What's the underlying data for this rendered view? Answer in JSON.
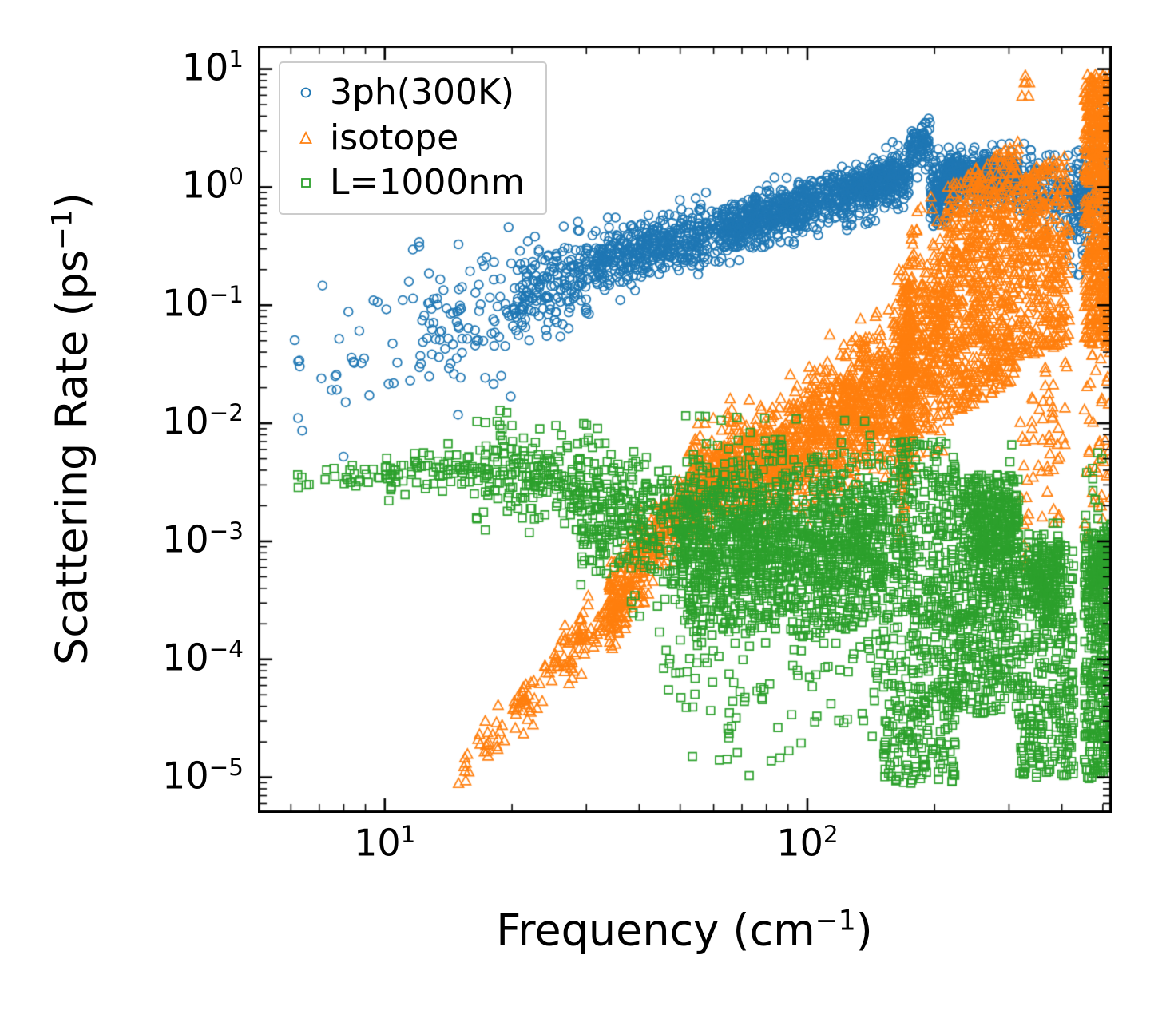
{
  "chart_data": {
    "type": "scatter",
    "title": "",
    "xlabel": {
      "text": "Frequency (cm",
      "sup": "−1",
      "post": ")"
    },
    "ylabel": {
      "text": "Scattering Rate (ps",
      "sup": "−1",
      "post": ")"
    },
    "xscale": "log",
    "yscale": "log",
    "xlim_log": [
      0.7,
      2.72
    ],
    "ylim_log": [
      -5.3,
      1.2
    ],
    "grid": false,
    "tick_base": "10",
    "x_major_ticks": [
      {
        "value": 10,
        "exp": "1"
      },
      {
        "value": 100,
        "exp": "2"
      }
    ],
    "y_major_ticks": [
      {
        "value": 10,
        "exp": "1"
      },
      {
        "value": 1,
        "exp": "0"
      },
      {
        "value": 0.1,
        "exp": "−1"
      },
      {
        "value": 0.01,
        "exp": "−2"
      },
      {
        "value": 0.001,
        "exp": "−3"
      },
      {
        "value": 0.0001,
        "exp": "−4"
      },
      {
        "value": 1e-05,
        "exp": "−5"
      }
    ],
    "legend": {
      "position": "upper left",
      "entries": [
        {
          "label": "3ph(300K)",
          "marker": "circle",
          "color": "#1f77b4"
        },
        {
          "label": "isotope",
          "marker": "triangle",
          "color": "#ff7f0e"
        },
        {
          "label": "L=1000nm",
          "marker": "square",
          "color": "#2ca02c"
        }
      ]
    },
    "series_note": "Dense point clouds; clusters encode [logx0, logx1, logy_center0, logy_center1, spread_dex, n, dist(g=gaussian,u=uniform)] in log10 space",
    "series": [
      {
        "name": "3ph(300K)",
        "marker": "circle",
        "color": "#1f77b4",
        "clusters": [
          [
            0.78,
            1.08,
            -1.6,
            -1.3,
            0.35,
            35,
            "g"
          ],
          [
            1.08,
            1.3,
            -1.25,
            -1.0,
            0.28,
            90,
            "g"
          ],
          [
            1.3,
            1.5,
            -0.95,
            -0.65,
            0.18,
            200,
            "g"
          ],
          [
            1.5,
            1.8,
            -0.65,
            -0.35,
            0.13,
            450,
            "g"
          ],
          [
            1.8,
            2.1,
            -0.35,
            -0.05,
            0.11,
            650,
            "g"
          ],
          [
            2.1,
            2.24,
            -0.05,
            0.12,
            0.11,
            350,
            "g"
          ],
          [
            2.24,
            2.29,
            0.3,
            0.38,
            0.09,
            90,
            "g"
          ],
          [
            2.29,
            2.35,
            -0.05,
            -0.02,
            0.13,
            180,
            "g"
          ],
          [
            2.33,
            2.5,
            0.08,
            0.1,
            0.1,
            450,
            "g"
          ],
          [
            2.5,
            2.62,
            0.0,
            0.0,
            0.15,
            120,
            "g"
          ],
          [
            2.62,
            2.67,
            -0.15,
            -0.1,
            0.22,
            120,
            "g"
          ],
          [
            2.67,
            2.72,
            0.0,
            0.1,
            0.3,
            60,
            "g"
          ]
        ]
      },
      {
        "name": "isotope",
        "marker": "triangle",
        "color": "#ff7f0e",
        "clusters": [
          [
            1.17,
            1.42,
            -5.0,
            -4.0,
            0.1,
            80,
            "g"
          ],
          [
            1.42,
            1.56,
            -4.0,
            -3.5,
            0.12,
            90,
            "g"
          ],
          [
            1.53,
            1.62,
            -3.6,
            -3.1,
            0.18,
            160,
            "g"
          ],
          [
            1.62,
            1.72,
            -3.1,
            -2.6,
            0.15,
            120,
            "g"
          ],
          [
            1.72,
            2.0,
            -2.55,
            -2.15,
            0.22,
            600,
            "g"
          ],
          [
            2.0,
            2.2,
            -2.1,
            -1.75,
            0.28,
            550,
            "g"
          ],
          [
            2.2,
            2.33,
            -1.7,
            -1.2,
            0.45,
            450,
            "g"
          ],
          [
            2.22,
            2.25,
            -2.2,
            -1.0,
            0.9,
            150,
            "u"
          ],
          [
            2.33,
            2.5,
            -1.0,
            -0.6,
            1.0,
            700,
            "u"
          ],
          [
            2.5,
            2.62,
            -0.7,
            -0.5,
            0.8,
            350,
            "u"
          ],
          [
            2.5,
            2.62,
            -2.5,
            -2.0,
            0.8,
            60,
            "u"
          ],
          [
            2.655,
            2.72,
            -0.2,
            -0.2,
            1.15,
            600,
            "u"
          ],
          [
            2.655,
            2.72,
            -2.3,
            -2.0,
            0.8,
            40,
            "u"
          ],
          [
            2.5,
            2.53,
            0.82,
            0.9,
            0.06,
            6,
            "g"
          ]
        ]
      },
      {
        "name": "L=1000nm",
        "marker": "square",
        "color": "#2ca02c",
        "clusters": [
          [
            0.77,
            1.0,
            -2.52,
            -2.45,
            0.05,
            25,
            "g"
          ],
          [
            1.0,
            1.2,
            -2.42,
            -2.38,
            0.09,
            70,
            "g"
          ],
          [
            1.2,
            1.45,
            -2.4,
            -2.55,
            0.18,
            160,
            "g"
          ],
          [
            1.26,
            1.34,
            -2.1,
            -2.2,
            0.1,
            12,
            "g"
          ],
          [
            1.45,
            1.7,
            -2.7,
            -2.95,
            0.3,
            320,
            "g"
          ],
          [
            1.7,
            2.18,
            -3.0,
            -3.05,
            0.38,
            1500,
            "g"
          ],
          [
            1.65,
            2.18,
            -4.3,
            -4.0,
            0.35,
            90,
            "g"
          ],
          [
            1.85,
            2.1,
            -4.85,
            -4.7,
            0.15,
            6,
            "g"
          ],
          [
            2.18,
            2.35,
            -3.6,
            -3.6,
            1.45,
            550,
            "u"
          ],
          [
            2.35,
            2.5,
            -3.5,
            -3.4,
            1.0,
            450,
            "u"
          ],
          [
            2.38,
            2.5,
            -2.95,
            -2.85,
            0.25,
            250,
            "g"
          ],
          [
            2.5,
            2.63,
            -4.0,
            -4.0,
            1.0,
            350,
            "u"
          ],
          [
            2.52,
            2.6,
            -3.35,
            -3.35,
            0.18,
            160,
            "g"
          ],
          [
            2.655,
            2.72,
            -4.0,
            -3.9,
            1.05,
            320,
            "u"
          ],
          [
            2.655,
            2.72,
            -3.25,
            -3.2,
            0.2,
            100,
            "g"
          ],
          [
            2.66,
            2.7,
            -2.5,
            -2.4,
            0.15,
            8,
            "g"
          ]
        ]
      }
    ]
  }
}
